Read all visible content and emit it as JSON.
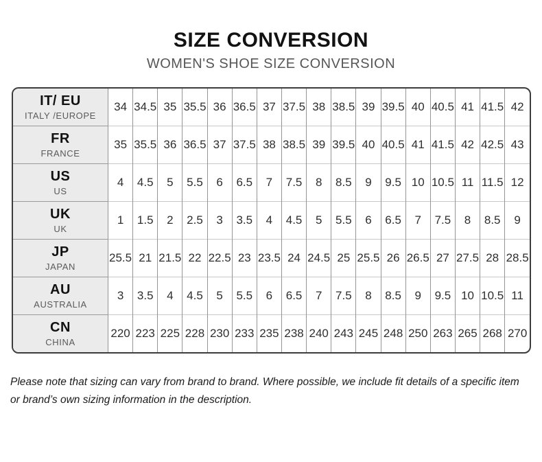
{
  "header": {
    "title": "SIZE CONVERSION",
    "subtitle": "WOMEN'S SHOE SIZE CONVERSION"
  },
  "table": {
    "rows": [
      {
        "code": "IT/ EU",
        "region": "ITALY /EUROPE",
        "values": [
          "34",
          "34.5",
          "35",
          "35.5",
          "36",
          "36.5",
          "37",
          "37.5",
          "38",
          "38.5",
          "39",
          "39.5",
          "40",
          "40.5",
          "41",
          "41.5",
          "42"
        ]
      },
      {
        "code": "FR",
        "region": "FRANCE",
        "values": [
          "35",
          "35.5",
          "36",
          "36.5",
          "37",
          "37.5",
          "38",
          "38.5",
          "39",
          "39.5",
          "40",
          "40.5",
          "41",
          "41.5",
          "42",
          "42.5",
          "43"
        ]
      },
      {
        "code": "US",
        "region": "US",
        "values": [
          "4",
          "4.5",
          "5",
          "5.5",
          "6",
          "6.5",
          "7",
          "7.5",
          "8",
          "8.5",
          "9",
          "9.5",
          "10",
          "10.5",
          "11",
          "11.5",
          "12"
        ]
      },
      {
        "code": "UK",
        "region": "UK",
        "values": [
          "1",
          "1.5",
          "2",
          "2.5",
          "3",
          "3.5",
          "4",
          "4.5",
          "5",
          "5.5",
          "6",
          "6.5",
          "7",
          "7.5",
          "8",
          "8.5",
          "9"
        ]
      },
      {
        "code": "JP",
        "region": "JAPAN",
        "values": [
          "25.5",
          "21",
          "21.5",
          "22",
          "22.5",
          "23",
          "23.5",
          "24",
          "24.5",
          "25",
          "25.5",
          "26",
          "26.5",
          "27",
          "27.5",
          "28",
          "28.5"
        ]
      },
      {
        "code": "AU",
        "region": "AUSTRALIA",
        "values": [
          "3",
          "3.5",
          "4",
          "4.5",
          "5",
          "5.5",
          "6",
          "6.5",
          "7",
          "7.5",
          "8",
          "8.5",
          "9",
          "9.5",
          "10",
          "10.5",
          "11"
        ]
      },
      {
        "code": "CN",
        "region": "CHINA",
        "values": [
          "220",
          "223",
          "225",
          "228",
          "230",
          "233",
          "235",
          "238",
          "240",
          "243",
          "245",
          "248",
          "250",
          "263",
          "265",
          "268",
          "270"
        ]
      }
    ]
  },
  "footer": {
    "note": "Please note that sizing can vary from brand to brand. Where possible, we include fit details of a specific item or brand’s own sizing information in the description."
  },
  "colors": {
    "header_column_bg": "#ebebeb",
    "outer_border": "#3c3c3c",
    "inner_vertical_border": "#949494",
    "inner_horizontal_border": "#c9c9c9",
    "title_text": "#121212",
    "subtitle_text": "#565656"
  }
}
